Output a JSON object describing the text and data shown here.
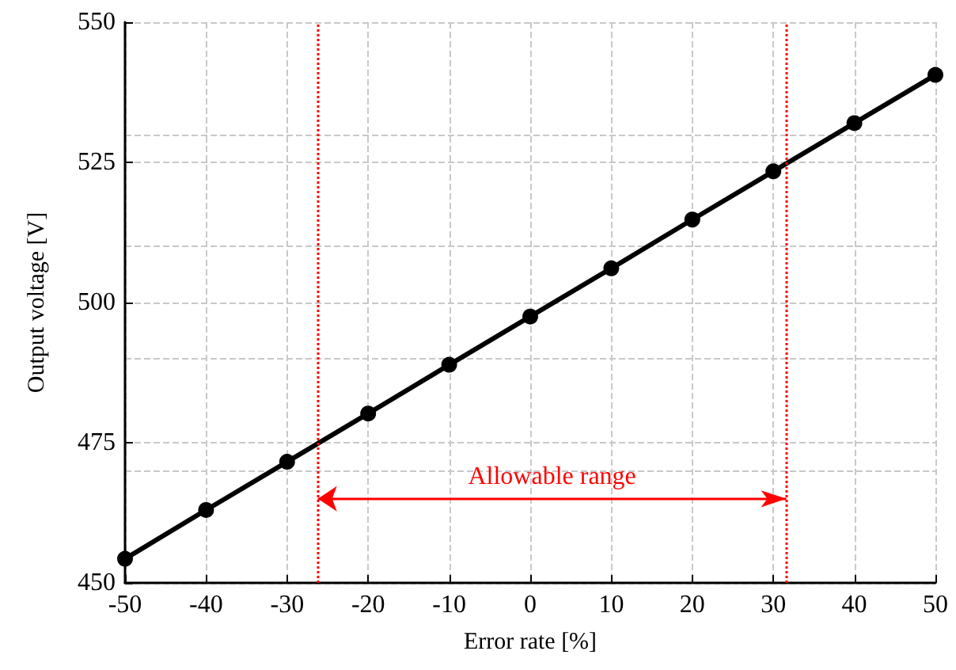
{
  "chart_data": {
    "type": "line",
    "xlabel": "Error rate [%]",
    "ylabel": "Output voltage [V]",
    "x": [
      -50,
      -40,
      -30,
      -20,
      -10,
      0,
      10,
      20,
      30,
      40,
      50
    ],
    "series": [
      {
        "color": "#000000",
        "values": [
          454.3,
          463,
          471.6,
          480.2,
          488.9,
          497.5,
          506.1,
          514.8,
          523.4,
          532,
          540.6
        ]
      }
    ],
    "xlim": [
      -50,
      50
    ],
    "xticks": [
      -50,
      -40,
      -30,
      -20,
      -10,
      0,
      10,
      20,
      30,
      40,
      50
    ],
    "ylim": [
      450,
      550
    ],
    "yticks": [
      450,
      475,
      500,
      525,
      550
    ],
    "grid": true,
    "marker": "circle",
    "line_style": "solid",
    "ref_lines": [
      {
        "axis": "x",
        "value": -26.2,
        "color": "#ff0000",
        "line_style": "dotted"
      },
      {
        "axis": "x",
        "value": 31.6,
        "color": "#ff0000",
        "line_style": "dotted"
      }
    ],
    "annotations": [
      "Allowable range"
    ]
  }
}
